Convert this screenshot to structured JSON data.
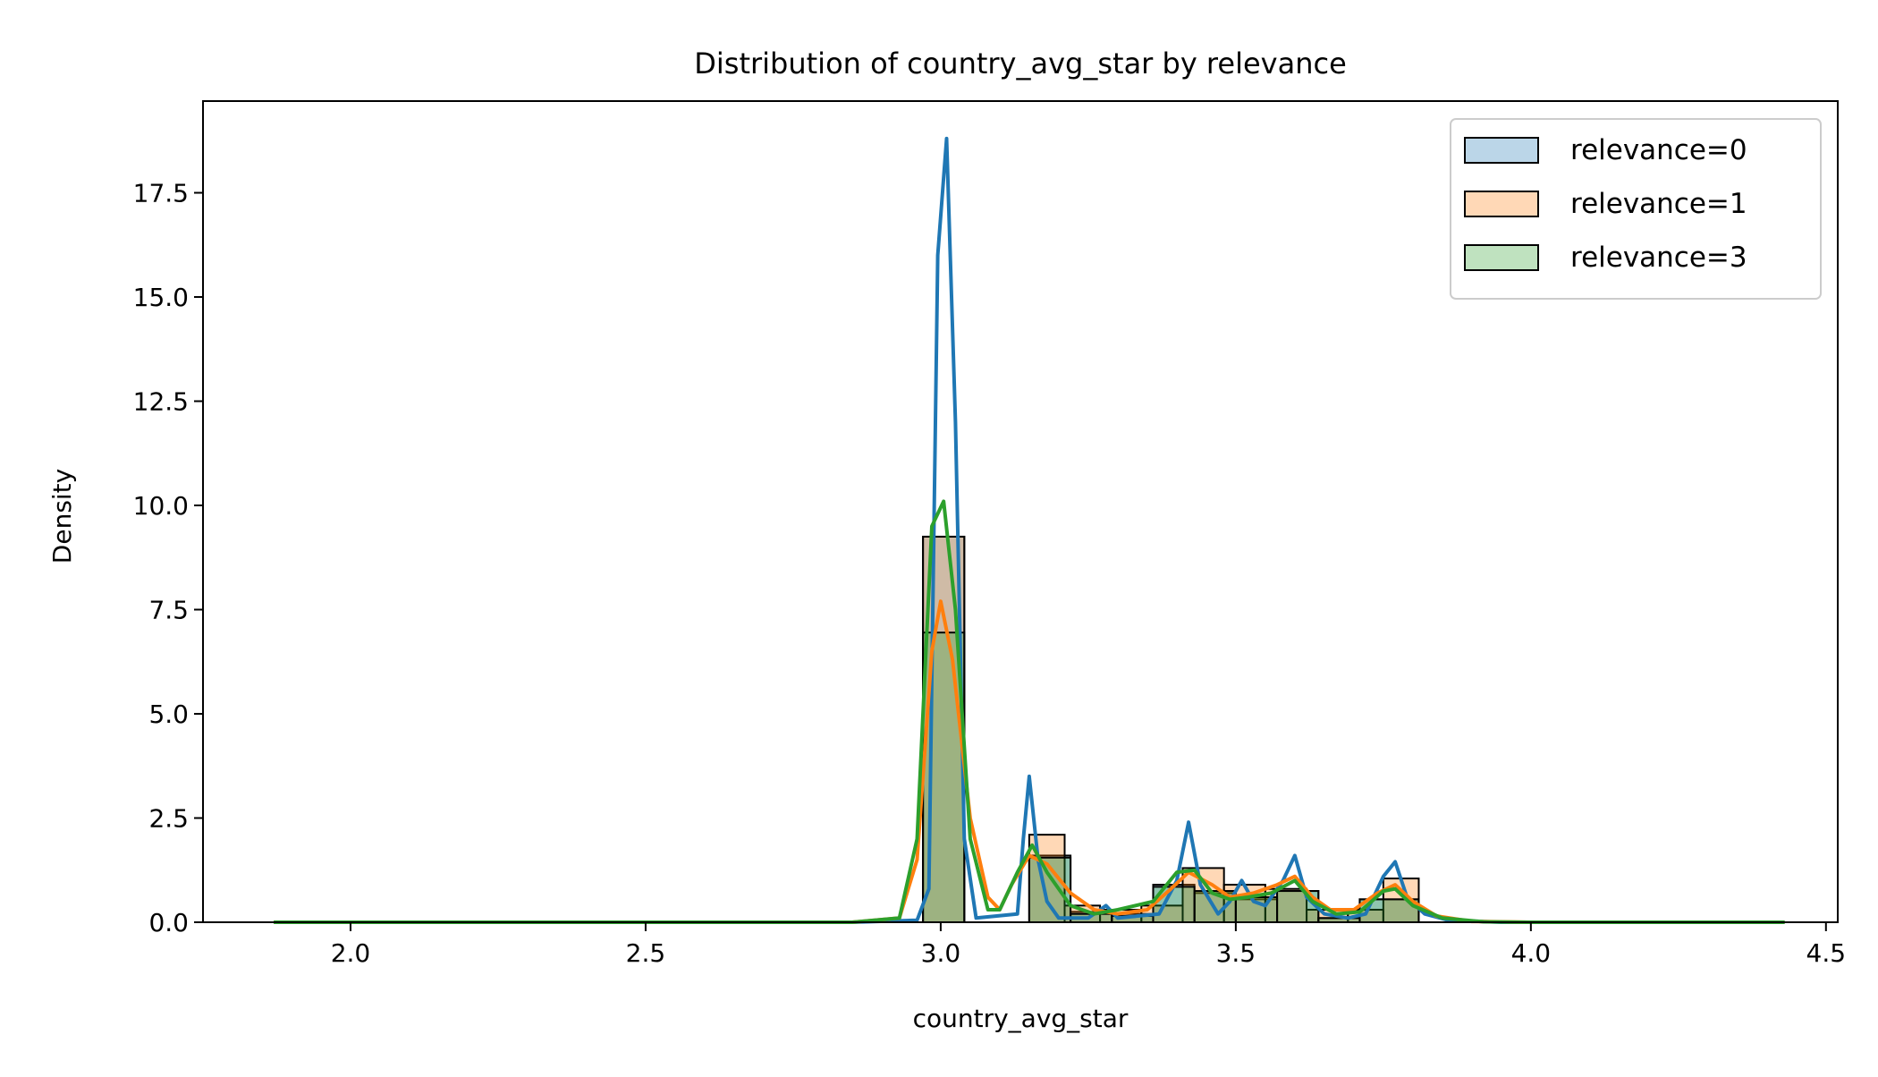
{
  "chart_data": {
    "type": "histogram+kde",
    "title": "Distribution of country_avg_star by relevance",
    "xlabel": "country_avg_star",
    "ylabel": "Density",
    "xlim": [
      1.75,
      4.52
    ],
    "ylim": [
      0,
      19.7
    ],
    "xticks": [
      2.0,
      2.5,
      3.0,
      3.5,
      4.0,
      4.5
    ],
    "xtick_labels": [
      "2.0",
      "2.5",
      "3.0",
      "3.5",
      "4.0",
      "4.5"
    ],
    "yticks": [
      0,
      2.5,
      5,
      7.5,
      10,
      12.5,
      15,
      17.5
    ],
    "ytick_labels": [
      "0.0",
      "2.5",
      "5.0",
      "7.5",
      "10.0",
      "12.5",
      "15.0",
      "17.5"
    ],
    "grid": false,
    "legend_location": "upper right",
    "series": [
      {
        "name": "relevance=0",
        "color": "#1f77b4",
        "hist": [
          {
            "x0": 2.97,
            "x1": 3.04,
            "h": 9.25
          },
          {
            "x0": 3.15,
            "x1": 3.22,
            "h": 1.6
          },
          {
            "x0": 3.22,
            "x1": 3.29,
            "h": 0.25
          },
          {
            "x0": 3.29,
            "x1": 3.36,
            "h": 0.2
          },
          {
            "x0": 3.36,
            "x1": 3.43,
            "h": 0.9
          },
          {
            "x0": 3.43,
            "x1": 3.5,
            "h": 0.7
          },
          {
            "x0": 3.5,
            "x1": 3.57,
            "h": 0.55
          },
          {
            "x0": 3.57,
            "x1": 3.64,
            "h": 0.75
          },
          {
            "x0": 3.64,
            "x1": 3.71,
            "h": 0.1
          },
          {
            "x0": 3.71,
            "x1": 3.81,
            "h": 0.55
          }
        ],
        "kde": [
          [
            1.87,
            0
          ],
          [
            2.85,
            0
          ],
          [
            2.96,
            0.05
          ],
          [
            2.98,
            0.8
          ],
          [
            2.995,
            16.0
          ],
          [
            3.01,
            18.8
          ],
          [
            3.025,
            12.0
          ],
          [
            3.04,
            2.0
          ],
          [
            3.06,
            0.1
          ],
          [
            3.13,
            0.2
          ],
          [
            3.14,
            2.0
          ],
          [
            3.15,
            3.5
          ],
          [
            3.165,
            1.5
          ],
          [
            3.18,
            0.5
          ],
          [
            3.2,
            0.1
          ],
          [
            3.25,
            0.1
          ],
          [
            3.28,
            0.4
          ],
          [
            3.3,
            0.1
          ],
          [
            3.37,
            0.2
          ],
          [
            3.4,
            1.0
          ],
          [
            3.42,
            2.4
          ],
          [
            3.44,
            0.9
          ],
          [
            3.47,
            0.2
          ],
          [
            3.49,
            0.5
          ],
          [
            3.51,
            1.0
          ],
          [
            3.53,
            0.5
          ],
          [
            3.55,
            0.4
          ],
          [
            3.58,
            1.0
          ],
          [
            3.6,
            1.6
          ],
          [
            3.62,
            0.6
          ],
          [
            3.65,
            0.2
          ],
          [
            3.69,
            0.1
          ],
          [
            3.72,
            0.2
          ],
          [
            3.75,
            1.1
          ],
          [
            3.77,
            1.45
          ],
          [
            3.79,
            0.6
          ],
          [
            3.82,
            0.2
          ],
          [
            3.86,
            0.05
          ],
          [
            3.95,
            0
          ],
          [
            4.43,
            0
          ]
        ]
      },
      {
        "name": "relevance=1",
        "color": "#ff7f0e",
        "hist": [
          {
            "x0": 2.97,
            "x1": 3.04,
            "h": 9.25
          },
          {
            "x0": 3.15,
            "x1": 3.21,
            "h": 2.1
          },
          {
            "x0": 3.21,
            "x1": 3.27,
            "h": 0.4
          },
          {
            "x0": 3.27,
            "x1": 3.34,
            "h": 0.3
          },
          {
            "x0": 3.34,
            "x1": 3.41,
            "h": 0.4
          },
          {
            "x0": 3.41,
            "x1": 3.48,
            "h": 1.3
          },
          {
            "x0": 3.48,
            "x1": 3.55,
            "h": 0.9
          },
          {
            "x0": 3.55,
            "x1": 3.62,
            "h": 0.8
          },
          {
            "x0": 3.62,
            "x1": 3.69,
            "h": 0.3
          },
          {
            "x0": 3.69,
            "x1": 3.75,
            "h": 0.3
          },
          {
            "x0": 3.75,
            "x1": 3.81,
            "h": 1.05
          }
        ],
        "kde": [
          [
            1.87,
            0
          ],
          [
            2.85,
            0
          ],
          [
            2.93,
            0.1
          ],
          [
            2.96,
            1.5
          ],
          [
            2.985,
            6.5
          ],
          [
            3.0,
            7.7
          ],
          [
            3.02,
            6.3
          ],
          [
            3.05,
            2.5
          ],
          [
            3.08,
            0.6
          ],
          [
            3.1,
            0.3
          ],
          [
            3.12,
            0.9
          ],
          [
            3.15,
            1.6
          ],
          [
            3.18,
            1.4
          ],
          [
            3.22,
            0.7
          ],
          [
            3.26,
            0.3
          ],
          [
            3.3,
            0.2
          ],
          [
            3.35,
            0.3
          ],
          [
            3.39,
            0.8
          ],
          [
            3.42,
            1.2
          ],
          [
            3.46,
            0.9
          ],
          [
            3.49,
            0.6
          ],
          [
            3.53,
            0.7
          ],
          [
            3.57,
            0.9
          ],
          [
            3.6,
            1.1
          ],
          [
            3.63,
            0.6
          ],
          [
            3.66,
            0.3
          ],
          [
            3.7,
            0.3
          ],
          [
            3.74,
            0.7
          ],
          [
            3.77,
            0.9
          ],
          [
            3.8,
            0.5
          ],
          [
            3.84,
            0.15
          ],
          [
            3.9,
            0.02
          ],
          [
            4.0,
            0
          ],
          [
            4.43,
            0
          ]
        ]
      },
      {
        "name": "relevance=3",
        "color": "#2ca02c",
        "hist": [
          {
            "x0": 2.97,
            "x1": 3.04,
            "h": 6.95
          },
          {
            "x0": 3.04,
            "x1": 3.05,
            "h": 0
          },
          {
            "x0": 3.15,
            "x1": 3.22,
            "h": 1.55
          },
          {
            "x0": 3.22,
            "x1": 3.29,
            "h": 0.2
          },
          {
            "x0": 3.29,
            "x1": 3.36,
            "h": 0.15
          },
          {
            "x0": 3.36,
            "x1": 3.43,
            "h": 0.85
          },
          {
            "x0": 3.43,
            "x1": 3.5,
            "h": 0.75
          },
          {
            "x0": 3.5,
            "x1": 3.57,
            "h": 0.6
          },
          {
            "x0": 3.57,
            "x1": 3.64,
            "h": 0.75
          },
          {
            "x0": 3.64,
            "x1": 3.71,
            "h": 0.1
          },
          {
            "x0": 3.71,
            "x1": 3.81,
            "h": 0.55
          }
        ],
        "kde": [
          [
            1.87,
            0
          ],
          [
            2.85,
            0
          ],
          [
            2.93,
            0.1
          ],
          [
            2.96,
            2.0
          ],
          [
            2.985,
            9.5
          ],
          [
            3.005,
            10.1
          ],
          [
            3.025,
            7.5
          ],
          [
            3.05,
            2.0
          ],
          [
            3.08,
            0.3
          ],
          [
            3.1,
            0.3
          ],
          [
            3.13,
            1.2
          ],
          [
            3.155,
            1.85
          ],
          [
            3.18,
            1.2
          ],
          [
            3.22,
            0.4
          ],
          [
            3.26,
            0.2
          ],
          [
            3.3,
            0.3
          ],
          [
            3.36,
            0.5
          ],
          [
            3.4,
            1.2
          ],
          [
            3.43,
            1.25
          ],
          [
            3.46,
            0.7
          ],
          [
            3.49,
            0.55
          ],
          [
            3.52,
            0.6
          ],
          [
            3.56,
            0.7
          ],
          [
            3.6,
            1.0
          ],
          [
            3.63,
            0.5
          ],
          [
            3.67,
            0.2
          ],
          [
            3.71,
            0.25
          ],
          [
            3.75,
            0.75
          ],
          [
            3.77,
            0.8
          ],
          [
            3.8,
            0.4
          ],
          [
            3.85,
            0.1
          ],
          [
            3.92,
            0.01
          ],
          [
            4.0,
            0
          ],
          [
            4.43,
            0
          ]
        ]
      }
    ]
  }
}
